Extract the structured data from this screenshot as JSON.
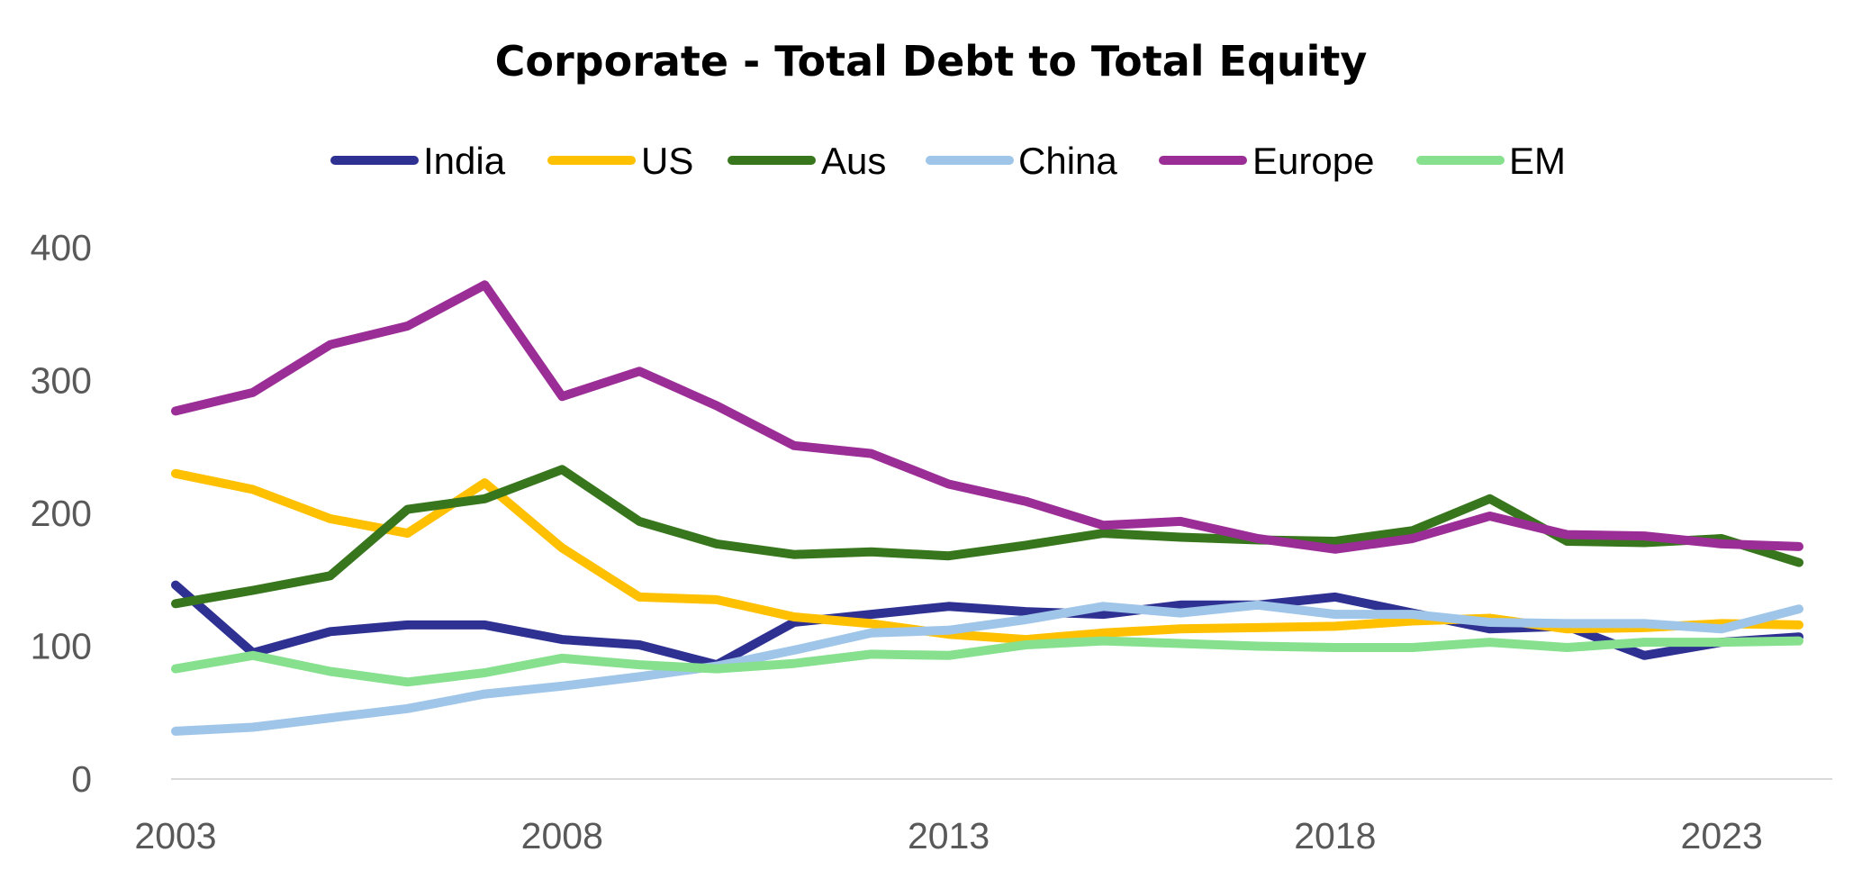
{
  "chart_data": {
    "type": "line",
    "title": "Corporate - Total Debt to Total Equity",
    "xlabel": "",
    "ylabel": "",
    "x": [
      2003,
      2004,
      2005,
      2006,
      2007,
      2008,
      2009,
      2010,
      2011,
      2012,
      2013,
      2014,
      2015,
      2016,
      2017,
      2018,
      2019,
      2020,
      2021,
      2022,
      2023,
      2024
    ],
    "xticks": [
      "2003",
      "2008",
      "2013",
      "2018",
      "2023"
    ],
    "yticks": [
      "0",
      "100",
      "200",
      "300",
      "400"
    ],
    "xlim": [
      2003,
      2024
    ],
    "ylim": [
      0,
      400
    ],
    "grid": false,
    "legend_position": "top",
    "series": [
      {
        "name": "India",
        "color": "#2E3192",
        "values": [
          146,
          95,
          111,
          116,
          116,
          105,
          101,
          86,
          118,
          124,
          130,
          126,
          124,
          131,
          131,
          137,
          125,
          113,
          115,
          93,
          103,
          107
        ]
      },
      {
        "name": "US",
        "color": "#FFC000",
        "values": [
          230,
          218,
          196,
          185,
          223,
          174,
          137,
          135,
          122,
          117,
          109,
          105,
          110,
          113,
          114,
          115,
          119,
          121,
          113,
          114,
          117,
          116
        ]
      },
      {
        "name": "Aus",
        "color": "#38761D",
        "values": [
          132,
          142,
          153,
          203,
          211,
          233,
          194,
          177,
          169,
          171,
          168,
          176,
          185,
          182,
          180,
          179,
          187,
          211,
          179,
          178,
          181,
          163
        ]
      },
      {
        "name": "China",
        "color": "#9FC5E8",
        "values": [
          36,
          39,
          46,
          53,
          64,
          70,
          77,
          85,
          97,
          110,
          112,
          120,
          130,
          125,
          131,
          124,
          124,
          118,
          117,
          117,
          113,
          128
        ]
      },
      {
        "name": "Europe",
        "color": "#9B2D96",
        "values": [
          277,
          291,
          327,
          341,
          372,
          288,
          307,
          281,
          251,
          245,
          222,
          209,
          191,
          194,
          181,
          173,
          181,
          198,
          184,
          183,
          177,
          175
        ]
      },
      {
        "name": "EM",
        "color": "#86E08E",
        "values": [
          83,
          93,
          81,
          73,
          80,
          91,
          86,
          83,
          87,
          94,
          93,
          101,
          104,
          102,
          100,
          99,
          99,
          103,
          99,
          103,
          103,
          104
        ]
      }
    ]
  }
}
